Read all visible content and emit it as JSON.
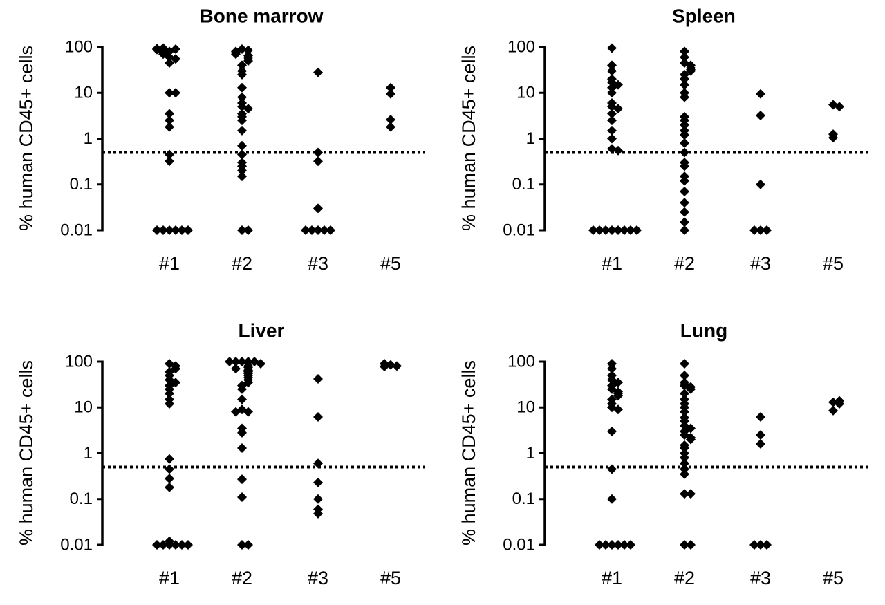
{
  "chart_data": [
    {
      "type": "strip",
      "title": "Bone marrow",
      "y_label": "% human CD45+ cells",
      "log_scale": true,
      "categories": [
        "#1",
        "#2",
        "#3",
        "#5"
      ],
      "color": "#000000",
      "ylim": [
        0.01,
        100
      ],
      "yticks": [
        0.01,
        0.1,
        1,
        10,
        100
      ],
      "reference_line": 0.5,
      "values": [
        [
          80,
          90,
          85,
          95,
          75,
          70,
          60,
          45,
          55,
          88,
          92,
          10,
          10,
          3.5,
          2.5,
          1.8,
          0.45,
          0.32,
          0.01,
          0.01,
          0.01,
          0.01,
          0.01,
          0.01
        ],
        [
          90,
          85,
          80,
          75,
          70,
          65,
          60,
          55,
          50,
          40,
          30,
          25,
          13,
          8,
          6,
          5,
          4.5,
          3.5,
          3,
          2.5,
          1.5,
          0.7,
          0.45,
          0.3,
          0.25,
          0.2,
          0.15,
          0.01,
          0.01
        ],
        [
          28,
          0.5,
          0.32,
          0.03,
          0.01,
          0.01,
          0.01,
          0.01,
          0.01
        ],
        [
          13,
          9.5,
          2.6,
          1.8
        ]
      ]
    },
    {
      "type": "strip",
      "title": "Spleen",
      "y_label": "% human CD45+ cells",
      "log_scale": true,
      "categories": [
        "#1",
        "#2",
        "#3",
        "#5"
      ],
      "color": "#000000",
      "ylim": [
        0.01,
        100
      ],
      "yticks": [
        0.01,
        0.1,
        1,
        10,
        100
      ],
      "reference_line": 0.5,
      "values": [
        [
          95,
          40,
          30,
          20,
          17,
          15,
          13,
          10,
          6,
          5,
          4.5,
          3.5,
          2.5,
          1.5,
          1,
          0.6,
          0.55,
          0.01,
          0.01,
          0.01,
          0.01,
          0.01,
          0.01,
          0.01,
          0.01
        ],
        [
          80,
          60,
          45,
          40,
          35,
          32,
          30,
          25,
          20,
          15,
          10,
          8,
          3,
          2.5,
          2,
          1.5,
          1.2,
          0.8,
          0.5,
          0.3,
          0.25,
          0.15,
          0.12,
          0.07,
          0.04,
          0.025,
          0.015,
          0.01
        ],
        [
          9.5,
          3.2,
          0.1,
          0.01,
          0.01,
          0.01
        ],
        [
          5.5,
          5,
          1.25,
          1.05
        ]
      ]
    },
    {
      "type": "strip",
      "title": "Liver",
      "y_label": "% human CD45+ cells",
      "log_scale": true,
      "categories": [
        "#1",
        "#2",
        "#3",
        "#5"
      ],
      "color": "#000000",
      "ylim": [
        0.01,
        100
      ],
      "yticks": [
        0.01,
        0.1,
        1,
        10,
        100
      ],
      "reference_line": 0.5,
      "values": [
        [
          90,
          80,
          70,
          60,
          50,
          40,
          35,
          30,
          25,
          20,
          15,
          12,
          0.75,
          0.45,
          0.28,
          0.18,
          0.012,
          0.01,
          0.01,
          0.01,
          0.01,
          0.01,
          0.01
        ],
        [
          100,
          100,
          100,
          100,
          100,
          90,
          80,
          75,
          70,
          65,
          60,
          55,
          50,
          45,
          40,
          35,
          30,
          25,
          15,
          9,
          8,
          8,
          3.5,
          2.8,
          1.3,
          0.27,
          0.11,
          0.01,
          0.01
        ],
        [
          42,
          6.2,
          0.6,
          0.23,
          0.1,
          0.06,
          0.048
        ],
        [
          85,
          80,
          90,
          78
        ]
      ]
    },
    {
      "type": "strip",
      "title": "Lung",
      "y_label": "% human CD45+ cells",
      "log_scale": true,
      "categories": [
        "#1",
        "#2",
        "#3",
        "#5"
      ],
      "color": "#000000",
      "ylim": [
        0.01,
        100
      ],
      "yticks": [
        0.01,
        0.1,
        1,
        10,
        100
      ],
      "reference_line": 0.5,
      "values": [
        [
          90,
          70,
          50,
          40,
          35,
          30,
          25,
          22,
          20,
          18,
          15,
          12,
          10,
          9,
          3,
          0.45,
          0.1,
          0.01,
          0.01,
          0.01,
          0.01,
          0.01,
          0.01
        ],
        [
          90,
          50,
          35,
          30,
          28,
          25,
          20,
          15,
          12,
          10,
          8,
          6,
          5,
          4,
          3.5,
          3,
          2.5,
          2.2,
          2,
          1.5,
          1.3,
          1,
          0.8,
          0.6,
          0.45,
          0.35,
          0.13,
          0.13,
          0.01,
          0.01
        ],
        [
          6.2,
          2.5,
          1.6,
          0.01,
          0.01,
          0.01
        ],
        [
          13,
          14,
          12,
          8.5
        ]
      ]
    }
  ]
}
